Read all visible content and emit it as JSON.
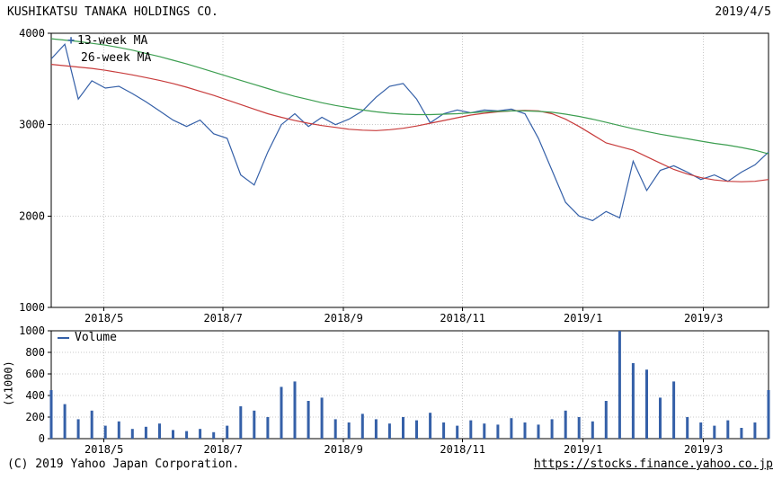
{
  "header": {
    "title": "KUSHIKATSU TANAKA HOLDINGS CO.",
    "date": "2019/4/5"
  },
  "legend": {
    "ma13_marker": "+",
    "ma13_label": "13-week MA",
    "ma26_label": "26-week MA",
    "volume_label": "Volume"
  },
  "axis": {
    "volume_unit": "(x1000)"
  },
  "footer": {
    "copyright": "(C) 2019 Yahoo Japan Corporation.",
    "url": "https://stocks.finance.yahoo.co.jp"
  },
  "colors": {
    "price": "#3560a8",
    "ma13": "#c83c3c",
    "ma26": "#3c9e50",
    "volume": "#3560a8",
    "grid": "#c9c9c9",
    "axis": "#000000",
    "text": "#000000",
    "background": "#ffffff"
  },
  "chart_data": [
    {
      "type": "line",
      "title": "KUSHIKATSU TANAKA HOLDINGS CO.",
      "xlabel": "",
      "ylabel": "",
      "ylim": [
        1000,
        4000
      ],
      "yticks": [
        1000,
        2000,
        3000,
        4000
      ],
      "xticklabels": [
        "2018/5",
        "2018/7",
        "2018/9",
        "2018/11",
        "2019/1",
        "2019/3"
      ],
      "xtick_index": [
        3.9,
        12.7,
        21.6,
        30.4,
        39.3,
        48.2
      ],
      "grid": true,
      "legend_position": "top-left",
      "series": [
        {
          "name": "price",
          "color": "#3560a8",
          "values": [
            3720,
            3880,
            3280,
            3480,
            3400,
            3420,
            3340,
            3250,
            3150,
            3050,
            2980,
            3050,
            2900,
            2850,
            2450,
            2340,
            2700,
            3000,
            3120,
            2980,
            3080,
            3000,
            3060,
            3150,
            3300,
            3420,
            3450,
            3280,
            3020,
            3120,
            3160,
            3130,
            3160,
            3150,
            3170,
            3120,
            2850,
            2500,
            2150,
            2000,
            1950,
            2050,
            1980,
            2600,
            2280,
            2500,
            2550,
            2480,
            2400,
            2450,
            2380,
            2480,
            2560,
            2700
          ]
        },
        {
          "name": "13-week MA",
          "color": "#c83c3c",
          "values": [
            3660,
            3645,
            3630,
            3615,
            3595,
            3570,
            3545,
            3515,
            3485,
            3450,
            3410,
            3365,
            3320,
            3270,
            3220,
            3170,
            3120,
            3080,
            3045,
            3015,
            2990,
            2970,
            2950,
            2940,
            2935,
            2945,
            2960,
            2985,
            3015,
            3045,
            3075,
            3105,
            3125,
            3140,
            3150,
            3155,
            3150,
            3120,
            3060,
            2980,
            2890,
            2800,
            2760,
            2720,
            2650,
            2580,
            2510,
            2460,
            2420,
            2395,
            2380,
            2375,
            2380,
            2400
          ]
        },
        {
          "name": "26-week MA",
          "color": "#3c9e50",
          "values": [
            3940,
            3925,
            3910,
            3890,
            3870,
            3845,
            3815,
            3780,
            3745,
            3705,
            3665,
            3620,
            3575,
            3530,
            3485,
            3440,
            3395,
            3350,
            3310,
            3275,
            3240,
            3210,
            3185,
            3160,
            3140,
            3125,
            3115,
            3110,
            3110,
            3115,
            3120,
            3130,
            3140,
            3145,
            3150,
            3150,
            3145,
            3135,
            3115,
            3090,
            3060,
            3025,
            2990,
            2955,
            2925,
            2895,
            2870,
            2845,
            2820,
            2795,
            2775,
            2750,
            2720,
            2680
          ]
        }
      ]
    },
    {
      "type": "bar",
      "title": "Volume",
      "xlabel": "",
      "ylabel": "(x1000)",
      "ylim": [
        0,
        1000
      ],
      "yticks": [
        0,
        200,
        400,
        600,
        800,
        1000
      ],
      "xticklabels": [
        "2018/5",
        "2018/7",
        "2018/9",
        "2018/11",
        "2019/1",
        "2019/3"
      ],
      "xtick_index": [
        3.9,
        12.7,
        21.6,
        30.4,
        39.3,
        48.2
      ],
      "grid": true,
      "values": [
        450,
        320,
        180,
        260,
        120,
        160,
        90,
        110,
        140,
        80,
        70,
        90,
        60,
        120,
        300,
        260,
        200,
        480,
        530,
        350,
        380,
        180,
        150,
        230,
        180,
        140,
        200,
        170,
        240,
        150,
        120,
        170,
        140,
        130,
        190,
        150,
        130,
        180,
        260,
        200,
        160,
        350,
        1000,
        700,
        640,
        380,
        530,
        200,
        150,
        120,
        170,
        100,
        150,
        450
      ]
    }
  ]
}
